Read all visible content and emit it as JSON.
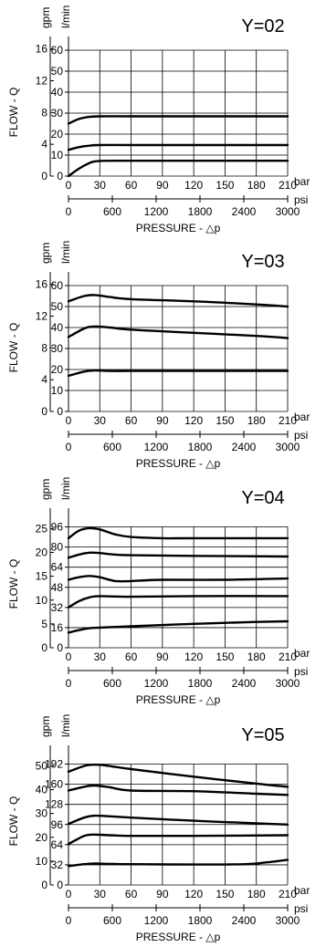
{
  "chart_data": [
    {
      "type": "line",
      "title": "Y=02",
      "ylabel": "FLOW - Q",
      "y_units": [
        "gpm",
        "l/min"
      ],
      "bar_unit": "bar",
      "psi_unit": "psi",
      "xlabel": "PRESSURE - △p",
      "xlim": [
        0,
        210
      ],
      "ylim_lmin": [
        0,
        60
      ],
      "bar_ticks": [
        0,
        30,
        60,
        90,
        120,
        150,
        180,
        210
      ],
      "psi_ticks": [
        0,
        600,
        1200,
        1800,
        2400,
        3000
      ],
      "lmin_ticks": [
        0,
        10,
        20,
        30,
        40,
        50,
        60
      ],
      "gpm_ticks": [
        0,
        4,
        8,
        12,
        16
      ],
      "series": [
        {
          "x": [
            0,
            10,
            20,
            30,
            60,
            120,
            210
          ],
          "y": [
            25,
            27.2,
            28.2,
            28.5,
            28.5,
            28.5,
            28.5
          ]
        },
        {
          "x": [
            0,
            10,
            20,
            30,
            60,
            120,
            210
          ],
          "y": [
            12.5,
            13.8,
            14.5,
            14.8,
            14.8,
            14.8,
            14.8
          ]
        },
        {
          "x": [
            0,
            10,
            20,
            30,
            60,
            120,
            210
          ],
          "y": [
            0,
            3.5,
            6.2,
            7.2,
            7.3,
            7.3,
            7.3
          ]
        }
      ]
    },
    {
      "type": "line",
      "title": "Y=03",
      "ylabel": "FLOW - Q",
      "y_units": [
        "gpm",
        "l/min"
      ],
      "bar_unit": "bar",
      "psi_unit": "psi",
      "xlabel": "PRESSURE - △p",
      "xlim": [
        0,
        210
      ],
      "ylim_lmin": [
        0,
        60
      ],
      "bar_ticks": [
        0,
        30,
        60,
        90,
        120,
        150,
        180,
        210
      ],
      "psi_ticks": [
        0,
        600,
        1200,
        1800,
        2400,
        3000
      ],
      "lmin_ticks": [
        0,
        10,
        20,
        30,
        40,
        50,
        60
      ],
      "gpm_ticks": [
        0,
        4,
        8,
        12,
        16
      ],
      "series": [
        {
          "x": [
            0,
            15,
            25,
            40,
            60,
            120,
            180,
            210
          ],
          "y": [
            52.5,
            55,
            55.5,
            54.5,
            53.5,
            52.5,
            51,
            50
          ]
        },
        {
          "x": [
            0,
            15,
            25,
            40,
            60,
            120,
            180,
            210
          ],
          "y": [
            35.5,
            39.5,
            40.5,
            40,
            39,
            37.5,
            36,
            35
          ]
        },
        {
          "x": [
            0,
            15,
            25,
            40,
            60,
            120,
            210
          ],
          "y": [
            17,
            19,
            19.5,
            19.3,
            19.3,
            19.3,
            19.3
          ]
        }
      ]
    },
    {
      "type": "line",
      "title": "Y=04",
      "ylabel": "FLOW - Q",
      "y_units": [
        "gpm",
        "l/min"
      ],
      "bar_unit": "bar",
      "psi_unit": "psi",
      "xlabel": "PRESSURE - △p",
      "xlim": [
        0,
        210
      ],
      "ylim_lmin": [
        0,
        100
      ],
      "bar_ticks": [
        0,
        30,
        60,
        90,
        120,
        150,
        180,
        210
      ],
      "psi_ticks": [
        0,
        600,
        1200,
        1800,
        2400,
        3000
      ],
      "lmin_ticks": [
        0,
        16,
        32,
        48,
        64,
        80,
        96
      ],
      "gpm_ticks": [
        0,
        5,
        10,
        15,
        20,
        25
      ],
      "series": [
        {
          "x": [
            0,
            10,
            20,
            30,
            45,
            60,
            90,
            120,
            210
          ],
          "y": [
            87,
            93,
            95,
            94,
            90,
            88,
            87,
            87,
            87
          ]
        },
        {
          "x": [
            0,
            10,
            20,
            30,
            45,
            60,
            120,
            210
          ],
          "y": [
            71.5,
            74,
            75.5,
            75.2,
            74,
            73.5,
            73,
            72.5
          ]
        },
        {
          "x": [
            0,
            10,
            20,
            30,
            45,
            60,
            90,
            150,
            210
          ],
          "y": [
            54,
            56,
            57,
            56,
            53,
            53,
            54,
            54,
            55
          ]
        },
        {
          "x": [
            0,
            10,
            20,
            30,
            60,
            120,
            210
          ],
          "y": [
            32,
            37,
            40,
            41,
            40.5,
            41,
            41
          ]
        },
        {
          "x": [
            0,
            10,
            20,
            30,
            60,
            120,
            180,
            210
          ],
          "y": [
            12,
            14,
            15.5,
            16,
            17,
            19,
            20.5,
            21
          ]
        }
      ]
    },
    {
      "type": "line",
      "title": "Y=05",
      "ylabel": "FLOW - Q",
      "y_units": [
        "gpm",
        "l/min"
      ],
      "bar_unit": "bar",
      "psi_unit": "psi",
      "xlabel": "PRESSURE - △p",
      "xlim": [
        0,
        210
      ],
      "ylim_lmin": [
        0,
        200
      ],
      "bar_ticks": [
        0,
        30,
        60,
        90,
        120,
        150,
        180,
        210
      ],
      "psi_ticks": [
        0,
        600,
        1200,
        1800,
        2400,
        3000
      ],
      "lmin_ticks": [
        0,
        32,
        64,
        96,
        128,
        160,
        192
      ],
      "gpm_ticks": [
        0,
        10,
        20,
        30,
        40,
        50
      ],
      "series": [
        {
          "x": [
            0,
            15,
            25,
            35,
            60,
            120,
            180,
            210
          ],
          "y": [
            180,
            189,
            191,
            190,
            184,
            172,
            161,
            156
          ]
        },
        {
          "x": [
            0,
            15,
            25,
            40,
            60,
            120,
            180,
            210
          ],
          "y": [
            150,
            156,
            158,
            155,
            150,
            149,
            145,
            143
          ]
        },
        {
          "x": [
            0,
            15,
            25,
            40,
            60,
            120,
            180,
            210
          ],
          "y": [
            97,
            107,
            110,
            109,
            107,
            102,
            98,
            96
          ]
        },
        {
          "x": [
            0,
            15,
            25,
            40,
            60,
            120,
            210
          ],
          "y": [
            65,
            78,
            80,
            79,
            78,
            78,
            79
          ]
        },
        {
          "x": [
            0,
            15,
            25,
            40,
            60,
            120,
            170,
            190,
            210
          ],
          "y": [
            30,
            33,
            34,
            33.5,
            33,
            32.5,
            33,
            36,
            40
          ]
        }
      ]
    }
  ]
}
